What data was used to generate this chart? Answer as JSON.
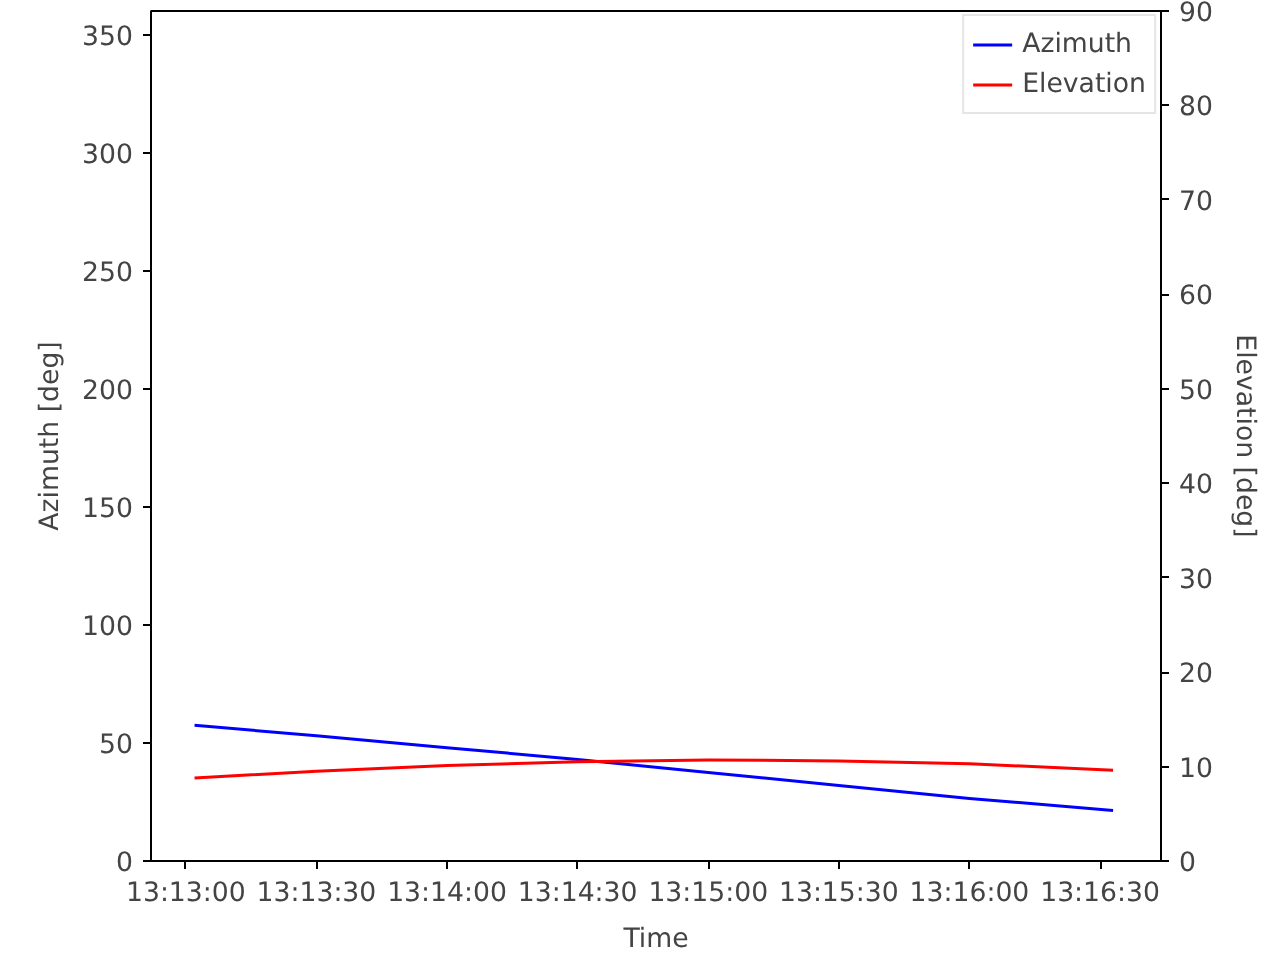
{
  "chart_data": {
    "type": "line",
    "xlabel": "Time",
    "ylabel": "Azimuth [deg]",
    "y2label": "Elevation [deg]",
    "x": [
      13.217222,
      13.225,
      13.233333,
      13.241667,
      13.25,
      13.258333,
      13.266667,
      13.275833
    ],
    "xlim": [
      13.214444,
      13.278889
    ],
    "xticks": [
      {
        "value": 13.216667,
        "label": "13:13:00"
      },
      {
        "value": 13.225,
        "label": "13:13:30"
      },
      {
        "value": 13.233333,
        "label": "13:14:00"
      },
      {
        "value": 13.241667,
        "label": "13:14:30"
      },
      {
        "value": 13.25,
        "label": "13:15:00"
      },
      {
        "value": 13.258333,
        "label": "13:15:30"
      },
      {
        "value": 13.266667,
        "label": "13:16:00"
      },
      {
        "value": 13.275,
        "label": "13:16:30"
      }
    ],
    "ylim": [
      0,
      360
    ],
    "yticks": [
      0,
      50,
      100,
      150,
      200,
      250,
      300,
      350
    ],
    "y2lim": [
      0,
      90
    ],
    "y2ticks": [
      0,
      10,
      20,
      30,
      40,
      50,
      60,
      70,
      80,
      90
    ],
    "series": [
      {
        "name": "Azimuth",
        "color": "#0000ff",
        "values": [
          57.5,
          53,
          48,
          43,
          37.5,
          32,
          26.5,
          21.4
        ]
      },
      {
        "name": "Elevation",
        "color": "#ff0000",
        "axis": "y2",
        "values": [
          8.8,
          9.5,
          10.1,
          10.5,
          10.7,
          10.6,
          10.3,
          9.6
        ]
      }
    ],
    "legend": "top right",
    "grid": false,
    "marker": "none",
    "line_style": "solid"
  }
}
